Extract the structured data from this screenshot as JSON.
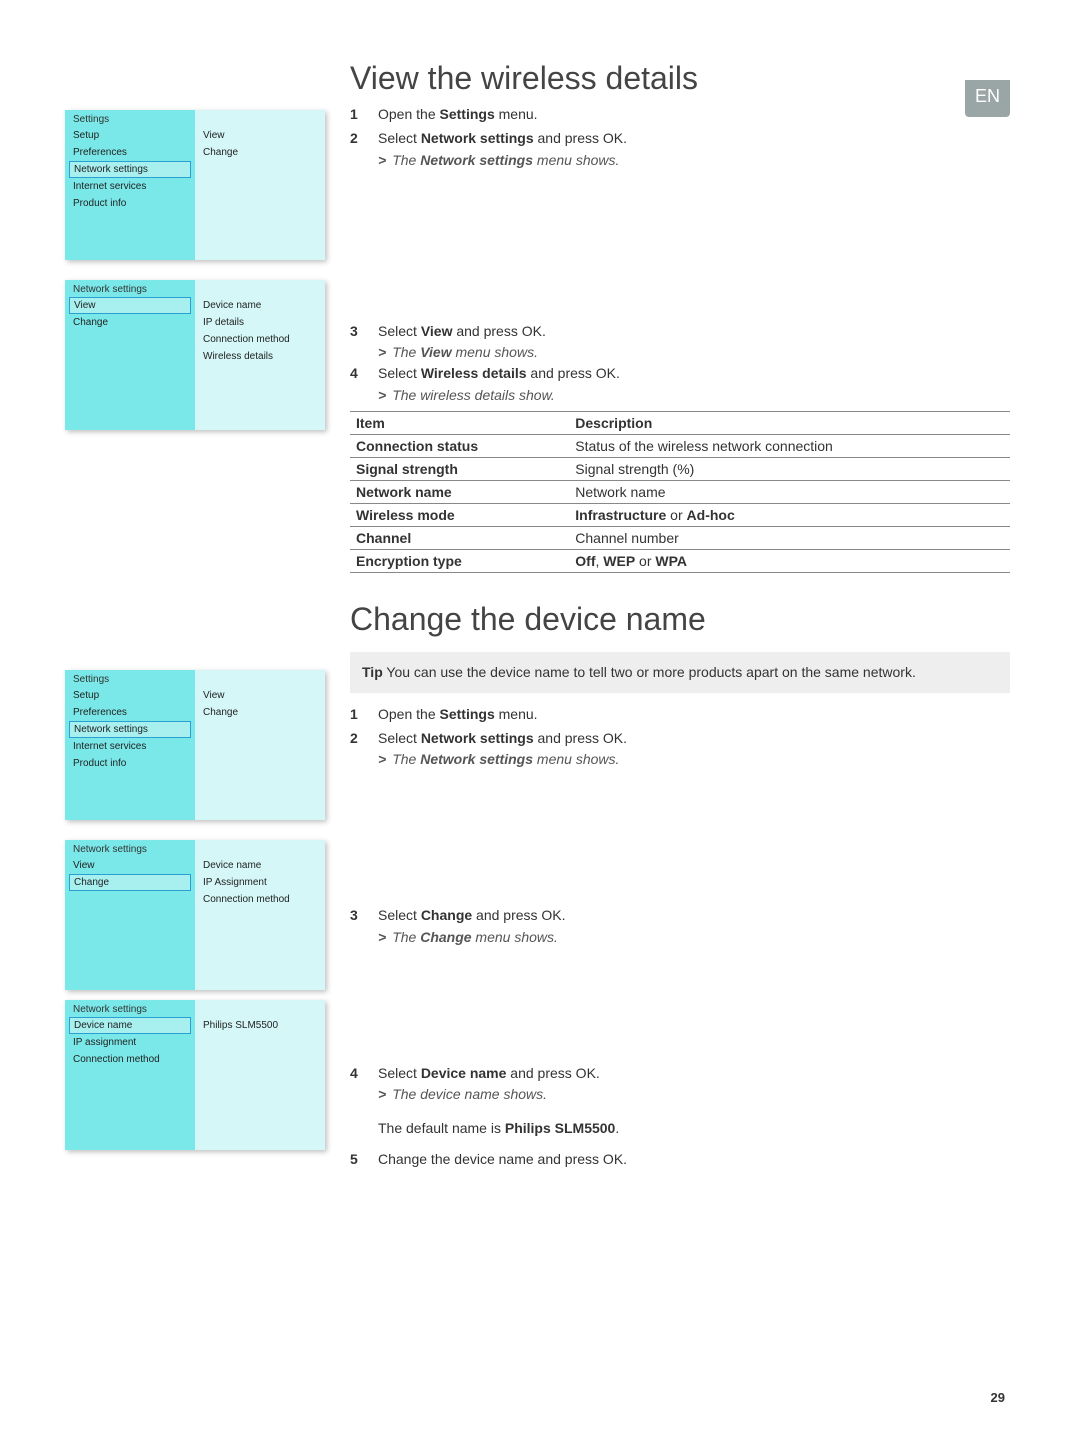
{
  "language_badge": "EN",
  "page_number": "29",
  "section1": {
    "title": "View the wireless details",
    "steps_a": [
      {
        "n": "1",
        "pre": "Open the ",
        "bold": "Settings",
        "post": " menu."
      },
      {
        "n": "2",
        "pre": "Select ",
        "bold": "Network settings",
        "post": " and press OK."
      }
    ],
    "result_a": {
      "gt": ">",
      "pre": "The ",
      "bold": "Network settings",
      "post": " menu shows."
    },
    "steps_b": [
      {
        "n": "3",
        "pre": "Select ",
        "bold": "View",
        "post": " and press OK."
      }
    ],
    "result_b": {
      "gt": ">",
      "pre": "The ",
      "bold": "View",
      "post": " menu shows."
    },
    "steps_c": [
      {
        "n": "4",
        "pre": "Select ",
        "bold": "Wireless details",
        "post": " and press OK."
      }
    ],
    "result_c": {
      "gt": ">",
      "full": "The wireless details show."
    },
    "table": {
      "headers": [
        "Item",
        "Description"
      ],
      "rows": [
        [
          "Connection status",
          "Status of the wireless network connection"
        ],
        [
          "Signal strength",
          "Signal strength (%)"
        ],
        [
          "Network name",
          "Network name"
        ],
        [
          "Wireless mode",
          "Infrastructure or Ad-hoc"
        ],
        [
          "Channel",
          "Channel number"
        ],
        [
          "Encryption type",
          "Off, WEP or WPA"
        ]
      ],
      "bold_rows_left": [
        0,
        1,
        2,
        3,
        4,
        5
      ],
      "desc_bold_map": {
        "3": [
          "Infrastructure",
          "Ad-hoc"
        ],
        "5": [
          "Off",
          "WEP",
          "WPA"
        ]
      }
    }
  },
  "section2": {
    "title": "Change the device name",
    "tip_label": "Tip",
    "tip_text": " You can use the device name to tell two or more products apart on the same network.",
    "steps_a": [
      {
        "n": "1",
        "pre": "Open the ",
        "bold": "Settings",
        "post": " menu."
      },
      {
        "n": "2",
        "pre": "Select ",
        "bold": "Network settings",
        "post": " and press OK."
      }
    ],
    "result_a": {
      "gt": ">",
      "pre": "The ",
      "bold": "Network settings",
      "post": " menu shows."
    },
    "steps_b": [
      {
        "n": "3",
        "pre": "Select ",
        "bold": "Change",
        "post": " and press OK."
      }
    ],
    "result_b": {
      "gt": ">",
      "pre": "The ",
      "bold": "Change",
      "post": " menu shows."
    },
    "steps_c": [
      {
        "n": "4",
        "pre": "Select ",
        "bold": "Device name",
        "post": " and press OK."
      }
    ],
    "result_c": {
      "gt": ">",
      "full": "The device name shows."
    },
    "default_line_pre": "The default name is ",
    "default_line_bold": "Philips SLM5500",
    "default_line_post": ".",
    "steps_d": [
      {
        "n": "5",
        "pre": "Change the device name and press OK.",
        "bold": "",
        "post": ""
      }
    ]
  },
  "menus": {
    "settings": {
      "header": "Settings",
      "left": [
        "Setup",
        "Preferences",
        "Network settings",
        "Internet services",
        "Product info"
      ],
      "selected_left": "Network settings",
      "right": [
        "View",
        "Change"
      ]
    },
    "network_view": {
      "header": "Network settings",
      "left": [
        "View",
        "Change"
      ],
      "selected_left": "View",
      "right": [
        "Device name",
        "IP details",
        "Connection method",
        "Wireless details"
      ]
    },
    "network_change": {
      "header": "Network settings",
      "left": [
        "View",
        "Change"
      ],
      "selected_left": "Change",
      "right": [
        "Device name",
        "IP Assignment",
        "Connection method"
      ]
    },
    "change_device": {
      "header": "Network settings",
      "left": [
        "Device name",
        "IP assignment",
        "Connection method"
      ],
      "selected_left": "Device name",
      "right": [
        "Philips SLM5500"
      ]
    }
  }
}
